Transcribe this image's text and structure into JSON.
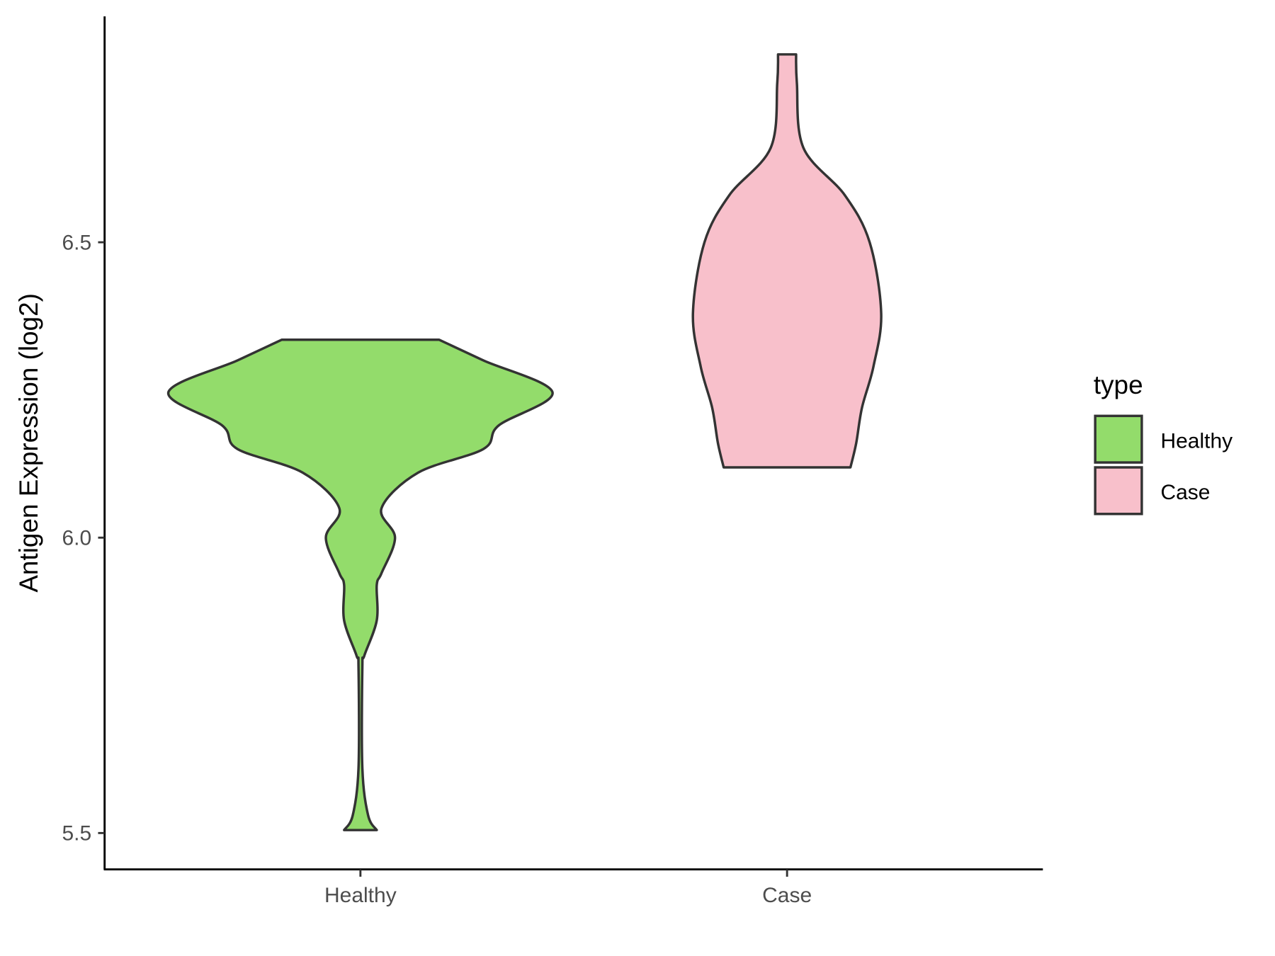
{
  "chart_data": {
    "type": "violin",
    "title": "",
    "xlabel": "",
    "ylabel": "Antigen Expression (log2)",
    "ylim": [
      5.44,
      6.88
    ],
    "yticks": [
      5.5,
      6.0,
      6.5
    ],
    "ytick_labels": [
      "5.5",
      "6.0",
      "6.5"
    ],
    "categories": [
      "Healthy",
      "Case"
    ],
    "grid": false,
    "legend": {
      "title": "type",
      "position": "right",
      "entries": [
        "Healthy",
        "Case"
      ]
    },
    "series": [
      {
        "name": "Healthy",
        "color": "#93DC6B",
        "range": [
          5.505,
          6.335
        ],
        "density_profile": [
          [
            6.335,
            0.41
          ],
          [
            6.3,
            0.64
          ],
          [
            6.246,
            1.0
          ],
          [
            6.19,
            0.72
          ],
          [
            6.15,
            0.64
          ],
          [
            6.11,
            0.3
          ],
          [
            6.05,
            0.11
          ],
          [
            6.0,
            0.18
          ],
          [
            5.94,
            0.11
          ],
          [
            5.92,
            0.085
          ],
          [
            5.86,
            0.085
          ],
          [
            5.8,
            0.02
          ],
          [
            5.78,
            0.01
          ],
          [
            5.61,
            0.01
          ],
          [
            5.53,
            0.04
          ],
          [
            5.505,
            0.085
          ]
        ]
      },
      {
        "name": "Case",
        "color": "#F8C0CB",
        "range": [
          6.119,
          6.818
        ],
        "density_profile": [
          [
            6.818,
            0.047
          ],
          [
            6.77,
            0.051
          ],
          [
            6.66,
            0.085
          ],
          [
            6.58,
            0.3
          ],
          [
            6.5,
            0.43
          ],
          [
            6.38,
            0.49
          ],
          [
            6.29,
            0.45
          ],
          [
            6.22,
            0.39
          ],
          [
            6.16,
            0.36
          ],
          [
            6.119,
            0.33
          ]
        ]
      }
    ]
  }
}
